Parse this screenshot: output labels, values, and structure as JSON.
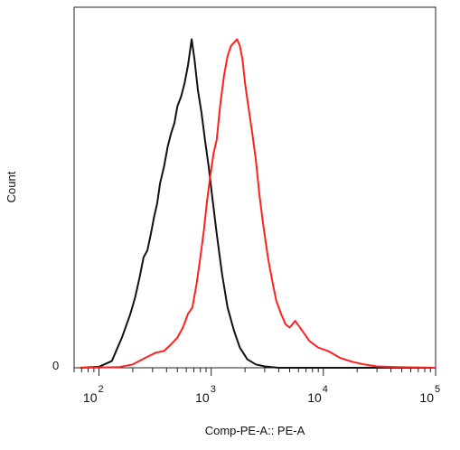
{
  "chart_data": {
    "type": "line",
    "title": "",
    "xlabel": "Comp-PE-A:: PE-A",
    "ylabel": "Count",
    "x_scale": "log",
    "xlim": [
      60,
      100000
    ],
    "ylim": [
      0,
      1
    ],
    "y_tick_labels": [
      "0"
    ],
    "x_ticks": [
      {
        "value": 100,
        "base": "10",
        "exp": "2"
      },
      {
        "value": 1000,
        "base": "10",
        "exp": "3"
      },
      {
        "value": 10000,
        "base": "10",
        "exp": "4"
      },
      {
        "value": 100000,
        "base": "10",
        "exp": "5"
      }
    ],
    "grid": false,
    "series": [
      {
        "color": "#111111",
        "x": [
          68,
          100,
          130,
          160,
          190,
          210,
          230,
          250,
          270,
          290,
          310,
          330,
          350,
          380,
          410,
          440,
          470,
          500,
          540,
          580,
          620,
          670,
          710,
          760,
          820,
          880,
          950,
          1030,
          1120,
          1250,
          1400,
          1600,
          1800,
          2100,
          2500,
          3000,
          4000,
          6000,
          10000,
          30000,
          100000
        ],
        "y": [
          0.0,
          0.003,
          0.02,
          0.09,
          0.16,
          0.21,
          0.27,
          0.33,
          0.35,
          0.4,
          0.45,
          0.49,
          0.55,
          0.6,
          0.66,
          0.7,
          0.73,
          0.78,
          0.81,
          0.85,
          0.9,
          0.98,
          0.92,
          0.83,
          0.76,
          0.68,
          0.6,
          0.5,
          0.4,
          0.28,
          0.18,
          0.11,
          0.06,
          0.025,
          0.01,
          0.004,
          0.0,
          0.0,
          0.0,
          0.0,
          0.0
        ]
      },
      {
        "color": "#ff2020",
        "x": [
          68,
          150,
          200,
          260,
          320,
          380,
          440,
          500,
          560,
          620,
          680,
          740,
          800,
          860,
          920,
          980,
          1050,
          1120,
          1200,
          1300,
          1400,
          1500,
          1600,
          1700,
          1800,
          1900,
          2000,
          2100,
          2300,
          2500,
          2700,
          2900,
          3200,
          3500,
          3800,
          4200,
          4600,
          5000,
          5600,
          6500,
          7500,
          9000,
          11000,
          14000,
          18000,
          23000,
          30000,
          45000,
          100000
        ],
        "y": [
          0.0,
          0.002,
          0.01,
          0.03,
          0.045,
          0.05,
          0.07,
          0.09,
          0.12,
          0.16,
          0.18,
          0.25,
          0.33,
          0.41,
          0.5,
          0.57,
          0.64,
          0.68,
          0.78,
          0.87,
          0.93,
          0.96,
          0.97,
          0.98,
          0.96,
          0.92,
          0.85,
          0.8,
          0.71,
          0.62,
          0.51,
          0.43,
          0.33,
          0.26,
          0.2,
          0.16,
          0.13,
          0.12,
          0.14,
          0.11,
          0.08,
          0.06,
          0.05,
          0.03,
          0.018,
          0.01,
          0.004,
          0.002,
          0.0
        ]
      }
    ]
  }
}
